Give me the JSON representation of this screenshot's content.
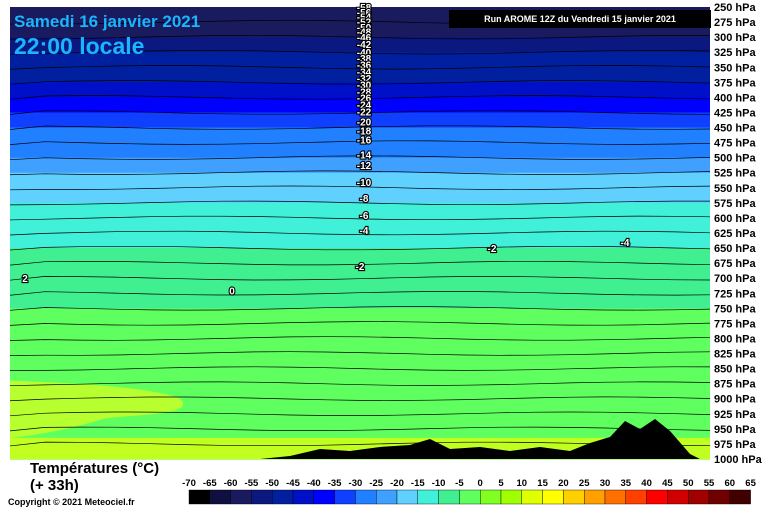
{
  "header": {
    "date": "Samedi 16 janvier 2021",
    "time": "22:00 locale",
    "run": "Run AROME 12Z du Vendredi 15 janvier 2021"
  },
  "footer": {
    "legend_title_line1": "Températures (°C)",
    "legend_title_line2": "(+ 33h)",
    "copyright": "Copyright © 2021 Meteociel.fr"
  },
  "chart_data": {
    "type": "heatmap",
    "title": "Températures (°C) (+ 33h)",
    "pressure_levels_hpa": [
      250,
      275,
      300,
      325,
      350,
      375,
      400,
      425,
      450,
      475,
      500,
      525,
      550,
      575,
      600,
      625,
      650,
      675,
      700,
      725,
      750,
      775,
      800,
      825,
      850,
      875,
      900,
      925,
      950,
      975,
      1000
    ],
    "pressure_tick_labels": [
      "250 hPa",
      "275 hPa",
      "300 hPa",
      "325 hPa",
      "350 hPa",
      "375 hPa",
      "400 hPa",
      "425 hPa",
      "450 hPa",
      "475 hPa",
      "500 hPa",
      "525 hPa",
      "550 hPa",
      "575 hPa",
      "600 hPa",
      "625 hPa",
      "650 hPa",
      "675 hPa",
      "700 hPa",
      "725 hPa",
      "750 hPa",
      "775 hPa",
      "800 hPa",
      "825 hPa",
      "850 hPa",
      "875 hPa",
      "900 hPa",
      "925 hPa",
      "950 hPa",
      "975 hPa",
      "1000 hPa"
    ],
    "temperature_profile_c": [
      -58,
      -56,
      -53,
      -50,
      -47,
      -43,
      -39,
      -34,
      -30,
      -27,
      -23,
      -19,
      -16,
      -14,
      -12,
      -11,
      -10,
      -8,
      -7,
      -6,
      -5,
      -4,
      -4,
      -3,
      -3,
      -2,
      -2,
      -2,
      -1,
      0,
      1
    ],
    "isotherm_labels": [
      {
        "value": "-58",
        "level": 250
      },
      {
        "value": "-56",
        "level": 258
      },
      {
        "value": "-54",
        "level": 266
      },
      {
        "value": "-52",
        "level": 274
      },
      {
        "value": "-50",
        "level": 283
      },
      {
        "value": "-48",
        "level": 291
      },
      {
        "value": "-46",
        "level": 300
      },
      {
        "value": "-42",
        "level": 311
      },
      {
        "value": "-40",
        "level": 325
      },
      {
        "value": "-38",
        "level": 335
      },
      {
        "value": "-36",
        "level": 345
      },
      {
        "value": "-34",
        "level": 357
      },
      {
        "value": "-32",
        "level": 368
      },
      {
        "value": "-30",
        "level": 379
      },
      {
        "value": "-28",
        "level": 390
      },
      {
        "value": "-26",
        "level": 400
      },
      {
        "value": "-24",
        "level": 412
      },
      {
        "value": "-22",
        "level": 423
      },
      {
        "value": "-20",
        "level": 440
      },
      {
        "value": "-18",
        "level": 455
      },
      {
        "value": "-16",
        "level": 470
      },
      {
        "value": "-14",
        "level": 495
      },
      {
        "value": "-12",
        "level": 512
      },
      {
        "value": "-10",
        "level": 540
      },
      {
        "value": "-8",
        "level": 567
      },
      {
        "value": "-6",
        "level": 595
      },
      {
        "value": "-4",
        "level": 620
      },
      {
        "value": "-2",
        "level": 680
      },
      {
        "value": "-2",
        "level": 650
      },
      {
        "value": "-4",
        "level": 640
      },
      {
        "value": "2",
        "level": 700
      },
      {
        "value": "0",
        "level": 720
      }
    ],
    "colorbar": {
      "ticks": [
        "-70",
        "-65",
        "-60",
        "-55",
        "-50",
        "-45",
        "-40",
        "-35",
        "-30",
        "-25",
        "-20",
        "-15",
        "-10",
        "-5",
        "0",
        "5",
        "10",
        "15",
        "20",
        "25",
        "30",
        "35",
        "40",
        "45",
        "50",
        "55",
        "60",
        "65"
      ],
      "colors": [
        "#000000",
        "#101040",
        "#1a1a5e",
        "#0a1880",
        "#0020a0",
        "#0010c8",
        "#0000ff",
        "#1040ff",
        "#2080ff",
        "#40a0ff",
        "#60d0ff",
        "#40f0d8",
        "#40f090",
        "#60ff60",
        "#80ff20",
        "#a0ff00",
        "#e0ff00",
        "#ffff00",
        "#ffd000",
        "#ffa000",
        "#ff7000",
        "#ff4000",
        "#ff0000",
        "#d00000",
        "#a00000",
        "#700000",
        "#400000"
      ]
    }
  }
}
